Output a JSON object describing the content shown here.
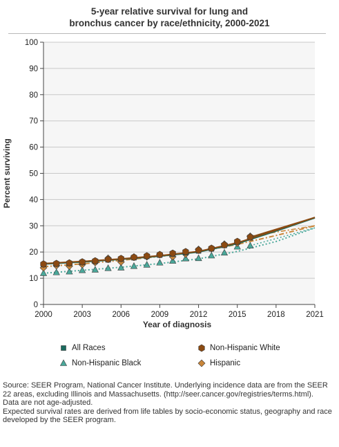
{
  "title_lines": [
    "5-year relative survival for lung and",
    "bronchus cancer by race/ethnicity, 2000-2021"
  ],
  "chart_data": {
    "type": "line",
    "title": "5-year relative survival for lung and bronchus cancer by race/ethnicity, 2000-2021",
    "xlabel": "Year of diagnosis",
    "ylabel": "Percent surviving",
    "xlim": [
      2000,
      2021
    ],
    "ylim": [
      0,
      100
    ],
    "x_ticks": [
      2000,
      2003,
      2006,
      2009,
      2012,
      2015,
      2018,
      2021
    ],
    "y_ticks": [
      0,
      10,
      20,
      30,
      40,
      50,
      60,
      70,
      80,
      90,
      100
    ],
    "grid": "horizontal",
    "legend_position": "bottom",
    "series": [
      {
        "name": "All Races",
        "color": "#1a6b5e",
        "marker": "square",
        "points": [
          [
            2000,
            15.2
          ],
          [
            2001,
            15.4
          ],
          [
            2002,
            15.6
          ],
          [
            2003,
            16.0
          ],
          [
            2004,
            16.4
          ],
          [
            2005,
            17.0
          ],
          [
            2006,
            17.3
          ],
          [
            2007,
            17.8
          ],
          [
            2008,
            18.3
          ],
          [
            2009,
            18.8
          ],
          [
            2010,
            19.2
          ],
          [
            2011,
            19.7
          ],
          [
            2012,
            20.4
          ],
          [
            2013,
            21.2
          ],
          [
            2014,
            22.5
          ],
          [
            2015,
            23.8
          ],
          [
            2016,
            25.4
          ]
        ],
        "fit": [
          [
            2000,
            15.4
          ],
          [
            2003,
            16.2
          ],
          [
            2006,
            17.2
          ],
          [
            2009,
            18.4
          ],
          [
            2012,
            20.0
          ],
          [
            2015,
            23.2
          ],
          [
            2018,
            28.0
          ],
          [
            2021,
            33.0
          ]
        ],
        "projected": [
          [
            2016,
            25.4
          ],
          [
            2021,
            33.0
          ]
        ]
      },
      {
        "name": "Non-Hispanic White",
        "color": "#8b4a12",
        "marker": "circle",
        "points": [
          [
            2000,
            15.4
          ],
          [
            2001,
            15.6
          ],
          [
            2002,
            15.8
          ],
          [
            2003,
            16.2
          ],
          [
            2004,
            16.6
          ],
          [
            2005,
            17.2
          ],
          [
            2006,
            17.5
          ],
          [
            2007,
            18.0
          ],
          [
            2008,
            18.5
          ],
          [
            2009,
            19.0
          ],
          [
            2010,
            19.5
          ],
          [
            2011,
            20.1
          ],
          [
            2012,
            20.7
          ],
          [
            2013,
            21.4
          ],
          [
            2014,
            22.7
          ],
          [
            2015,
            24.0
          ],
          [
            2016,
            25.7
          ]
        ],
        "fit": [
          [
            2000,
            15.6
          ],
          [
            2003,
            16.4
          ],
          [
            2006,
            17.4
          ],
          [
            2009,
            18.6
          ],
          [
            2012,
            20.2
          ],
          [
            2015,
            23.5
          ],
          [
            2018,
            28.3
          ],
          [
            2021,
            33.2
          ]
        ],
        "projected": [
          [
            2016,
            25.7
          ],
          [
            2021,
            33.2
          ]
        ]
      },
      {
        "name": "Non-Hispanic Black",
        "color": "#4aa89a",
        "marker": "triangle",
        "points": [
          [
            2000,
            11.9
          ],
          [
            2001,
            12.2
          ],
          [
            2002,
            12.5
          ],
          [
            2003,
            13.0
          ],
          [
            2004,
            13.2
          ],
          [
            2005,
            13.8
          ],
          [
            2006,
            14.0
          ],
          [
            2007,
            14.6
          ],
          [
            2008,
            15.1
          ],
          [
            2009,
            15.9
          ],
          [
            2010,
            16.6
          ],
          [
            2011,
            17.5
          ],
          [
            2012,
            17.6
          ],
          [
            2013,
            18.6
          ],
          [
            2014,
            19.7
          ],
          [
            2015,
            22.0
          ],
          [
            2016,
            22.4
          ]
        ],
        "fit": [
          [
            2000,
            11.9
          ],
          [
            2003,
            13.0
          ],
          [
            2006,
            14.2
          ],
          [
            2009,
            15.6
          ],
          [
            2012,
            17.4
          ],
          [
            2015,
            20.2
          ],
          [
            2018,
            24.0
          ],
          [
            2021,
            29.2
          ]
        ],
        "projected": [
          [
            2016,
            22.4
          ],
          [
            2021,
            29.2
          ]
        ]
      },
      {
        "name": "Hispanic",
        "color": "#c9863a",
        "marker": "diamond",
        "points": [
          [
            2000,
            14.0
          ],
          [
            2001,
            14.8
          ],
          [
            2002,
            14.6
          ],
          [
            2003,
            15.2
          ],
          [
            2004,
            16.0
          ],
          [
            2005,
            17.6
          ],
          [
            2006,
            16.2
          ],
          [
            2007,
            18.1
          ],
          [
            2008,
            18.2
          ],
          [
            2009,
            19.0
          ],
          [
            2010,
            18.2
          ],
          [
            2011,
            19.2
          ],
          [
            2012,
            21.0
          ],
          [
            2013,
            21.3
          ],
          [
            2014,
            23.0
          ],
          [
            2015,
            23.4
          ],
          [
            2016,
            26.0
          ]
        ],
        "fit": [
          [
            2000,
            14.4
          ],
          [
            2003,
            15.5
          ],
          [
            2006,
            16.8
          ],
          [
            2009,
            18.3
          ],
          [
            2012,
            20.1
          ],
          [
            2015,
            22.9
          ],
          [
            2018,
            26.3
          ],
          [
            2021,
            30.0
          ]
        ],
        "projected": [
          [
            2016,
            26.0
          ],
          [
            2021,
            30.0
          ]
        ]
      }
    ]
  },
  "source_lines": [
    "Source: SEER Program, National Cancer Institute. Underlying incidence data are from the SEER 22 areas, excluding Illinois and Massachusetts. (http://seer.cancer.gov/registries/terms.html).",
    "Data are not age-adjusted.",
    "Expected survival rates are derived from life tables by socio-economic status, geography and race developed by the SEER program."
  ]
}
